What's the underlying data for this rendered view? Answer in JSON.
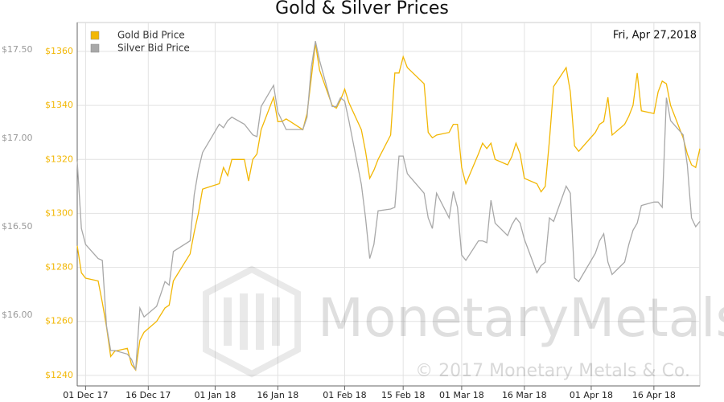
{
  "chart_data": {
    "type": "line",
    "title": "Gold & Silver Prices",
    "annotation": "Fri, Apr 27,2018",
    "watermark": "MonetaryMetals",
    "copyright": "© 2017 Monetary Metals & Co.",
    "legend": "top-left",
    "grid": true,
    "x": [
      "2017-11-29",
      "2017-11-30",
      "2017-12-01",
      "2017-12-04",
      "2017-12-05",
      "2017-12-06",
      "2017-12-07",
      "2017-12-08",
      "2017-12-11",
      "2017-12-12",
      "2017-12-13",
      "2017-12-14",
      "2017-12-15",
      "2017-12-18",
      "2017-12-20",
      "2017-12-21",
      "2017-12-22",
      "2017-12-26",
      "2017-12-27",
      "2017-12-28",
      "2017-12-29",
      "2018-01-02",
      "2018-01-03",
      "2018-01-04",
      "2018-01-05",
      "2018-01-08",
      "2018-01-09",
      "2018-01-10",
      "2018-01-11",
      "2018-01-12",
      "2018-01-15",
      "2018-01-16",
      "2018-01-17",
      "2018-01-18",
      "2018-01-19",
      "2018-01-22",
      "2018-01-23",
      "2018-01-24",
      "2018-01-25",
      "2018-01-26",
      "2018-01-29",
      "2018-01-30",
      "2018-01-31",
      "2018-02-01",
      "2018-02-02",
      "2018-02-05",
      "2018-02-06",
      "2018-02-07",
      "2018-02-08",
      "2018-02-09",
      "2018-02-12",
      "2018-02-13",
      "2018-02-14",
      "2018-02-15",
      "2018-02-16",
      "2018-02-20",
      "2018-02-21",
      "2018-02-22",
      "2018-02-23",
      "2018-02-26",
      "2018-02-27",
      "2018-02-28",
      "2018-03-01",
      "2018-03-02",
      "2018-03-05",
      "2018-03-06",
      "2018-03-07",
      "2018-03-08",
      "2018-03-09",
      "2018-03-12",
      "2018-03-13",
      "2018-03-14",
      "2018-03-15",
      "2018-03-16",
      "2018-03-19",
      "2018-03-20",
      "2018-03-21",
      "2018-03-22",
      "2018-03-23",
      "2018-03-26",
      "2018-03-27",
      "2018-03-28",
      "2018-03-29",
      "2018-04-02",
      "2018-04-03",
      "2018-04-04",
      "2018-04-05",
      "2018-04-06",
      "2018-04-09",
      "2018-04-10",
      "2018-04-11",
      "2018-04-12",
      "2018-04-13",
      "2018-04-16",
      "2018-04-17",
      "2018-04-18",
      "2018-04-19",
      "2018-04-20",
      "2018-04-23",
      "2018-04-24",
      "2018-04-25",
      "2018-04-26",
      "2018-04-27"
    ],
    "series": [
      {
        "name": "Gold Bid Price",
        "color": "#f2b705",
        "axis": "y",
        "values": [
          1288,
          1278,
          1276,
          1275,
          1267,
          1258,
          1247,
          1249,
          1250,
          1244,
          1242,
          1253,
          1256,
          1260,
          1265,
          1266,
          1275,
          1285,
          1293,
          1300,
          1309,
          1311,
          1317,
          1314,
          1320,
          1320,
          1312,
          1320,
          1322,
          1331,
          1343,
          1334,
          1334,
          1335,
          1334,
          1331,
          1337,
          1350,
          1363,
          1353,
          1340,
          1339,
          1342,
          1346,
          1341,
          1331,
          1323,
          1313,
          1316,
          1320,
          1329,
          1352,
          1352,
          1358,
          1354,
          1348,
          1330,
          1328,
          1329,
          1330,
          1333,
          1333,
          1317,
          1311,
          1322,
          1326,
          1324,
          1326,
          1320,
          1318,
          1321,
          1326,
          1322,
          1313,
          1311,
          1308,
          1310,
          1327,
          1347,
          1354,
          1345,
          1325,
          1323,
          1330,
          1333,
          1334,
          1343,
          1329,
          1333,
          1336,
          1340,
          1352,
          1338,
          1337,
          1345,
          1349,
          1348,
          1340,
          1328,
          1322,
          1318,
          1317,
          1324
        ]
      },
      {
        "name": "Silver Bid Price",
        "color": "#a8a8a8",
        "axis": "y2",
        "values": [
          16.87,
          16.49,
          16.4,
          16.32,
          16.31,
          15.94,
          15.8,
          15.8,
          15.78,
          15.75,
          15.69,
          16.04,
          15.99,
          16.05,
          16.19,
          16.17,
          16.36,
          16.42,
          16.68,
          16.82,
          16.92,
          17.08,
          17.06,
          17.1,
          17.12,
          17.08,
          17.05,
          17.02,
          17.01,
          17.18,
          17.3,
          17.15,
          17.1,
          17.05,
          17.05,
          17.05,
          17.12,
          17.4,
          17.55,
          17.44,
          17.18,
          17.18,
          17.23,
          17.21,
          17.1,
          16.74,
          16.55,
          16.32,
          16.4,
          16.59,
          16.6,
          16.61,
          16.9,
          16.9,
          16.8,
          16.69,
          16.55,
          16.49,
          16.69,
          16.55,
          16.7,
          16.61,
          16.34,
          16.31,
          16.42,
          16.42,
          16.41,
          16.65,
          16.52,
          16.45,
          16.51,
          16.55,
          16.52,
          16.43,
          16.24,
          16.28,
          16.3,
          16.55,
          16.53,
          16.73,
          16.69,
          16.21,
          16.19,
          16.35,
          16.42,
          16.46,
          16.3,
          16.23,
          16.3,
          16.4,
          16.48,
          16.52,
          16.62,
          16.64,
          16.64,
          16.61,
          17.23,
          17.1,
          17.02,
          16.85,
          16.55,
          16.5,
          16.53
        ]
      }
    ],
    "xlim": [
      "2017-11-29",
      "2018-04-27"
    ],
    "xticks": [
      {
        "value": "2017-12-01",
        "label": "01 Dec 17"
      },
      {
        "value": "2017-12-16",
        "label": "16 Dec 17"
      },
      {
        "value": "2018-01-01",
        "label": "01 Jan 18"
      },
      {
        "value": "2018-01-16",
        "label": "16 Jan 18"
      },
      {
        "value": "2018-02-01",
        "label": "01 Feb 18"
      },
      {
        "value": "2018-02-15",
        "label": "15 Feb 18"
      },
      {
        "value": "2018-03-01",
        "label": "01 Mar 18"
      },
      {
        "value": "2018-03-16",
        "label": "16 Mar 18"
      },
      {
        "value": "2018-04-01",
        "label": "01 Apr 18"
      },
      {
        "value": "2018-04-16",
        "label": "16 Apr 18"
      }
    ],
    "ylim": [
      1236.1,
      1370.7
    ],
    "yticks": [
      {
        "value": 1240,
        "label": "$1240"
      },
      {
        "value": 1260,
        "label": "$1260"
      },
      {
        "value": 1280,
        "label": "$1280"
      },
      {
        "value": 1300,
        "label": "$1300"
      },
      {
        "value": 1320,
        "label": "$1320"
      },
      {
        "value": 1340,
        "label": "$1340"
      },
      {
        "value": 1360,
        "label": "$1360"
      }
    ],
    "y2lim": [
      15.6,
      17.655
    ],
    "y2ticks": [
      {
        "value": 16.0,
        "label": "$16.00"
      },
      {
        "value": 16.5,
        "label": "$16.50"
      },
      {
        "value": 17.0,
        "label": "$17.00"
      },
      {
        "value": 17.5,
        "label": "$17.50"
      }
    ]
  }
}
